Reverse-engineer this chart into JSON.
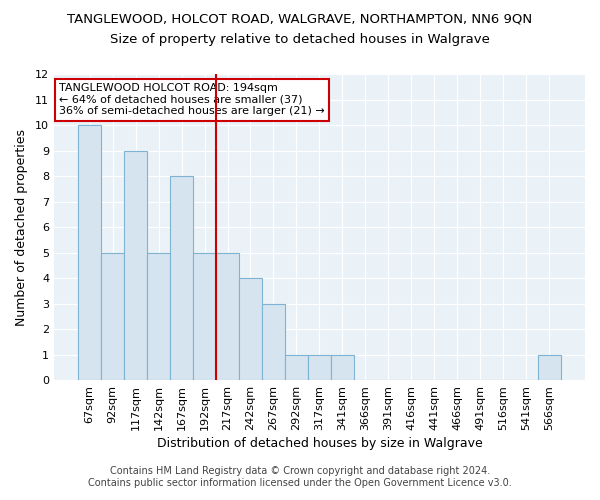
{
  "title": "TANGLEWOOD, HOLCOT ROAD, WALGRAVE, NORTHAMPTON, NN6 9QN",
  "subtitle": "Size of property relative to detached houses in Walgrave",
  "xlabel": "Distribution of detached houses by size in Walgrave",
  "ylabel": "Number of detached properties",
  "bar_values": [
    10,
    5,
    9,
    5,
    8,
    5,
    5,
    4,
    3,
    1,
    1,
    1,
    0,
    0,
    0,
    0,
    0,
    0,
    0,
    0,
    1
  ],
  "categories": [
    "67sqm",
    "92sqm",
    "117sqm",
    "142sqm",
    "167sqm",
    "192sqm",
    "217sqm",
    "242sqm",
    "267sqm",
    "292sqm",
    "317sqm",
    "341sqm",
    "366sqm",
    "391sqm",
    "416sqm",
    "441sqm",
    "466sqm",
    "491sqm",
    "516sqm",
    "541sqm",
    "566sqm"
  ],
  "bar_color": "#d6e4f0",
  "bar_edgecolor": "#7fb3d3",
  "vline_x": 5.5,
  "vline_color": "#cc0000",
  "ylim": [
    0,
    12
  ],
  "yticks": [
    0,
    1,
    2,
    3,
    4,
    5,
    6,
    7,
    8,
    9,
    10,
    11,
    12
  ],
  "annotation_title": "TANGLEWOOD HOLCOT ROAD: 194sqm",
  "annotation_line1": "← 64% of detached houses are smaller (37)",
  "annotation_line2": "36% of semi-detached houses are larger (21) →",
  "annotation_box_color": "#ffffff",
  "annotation_box_edgecolor": "#cc0000",
  "footer1": "Contains HM Land Registry data © Crown copyright and database right 2024.",
  "footer2": "Contains public sector information licensed under the Open Government Licence v3.0.",
  "title_fontsize": 9.5,
  "subtitle_fontsize": 9.5,
  "xlabel_fontsize": 9,
  "ylabel_fontsize": 9,
  "tick_fontsize": 8,
  "footer_fontsize": 7,
  "background_color": "#ffffff",
  "plot_bg_color": "#eaf2f8",
  "grid_color": "#ffffff"
}
